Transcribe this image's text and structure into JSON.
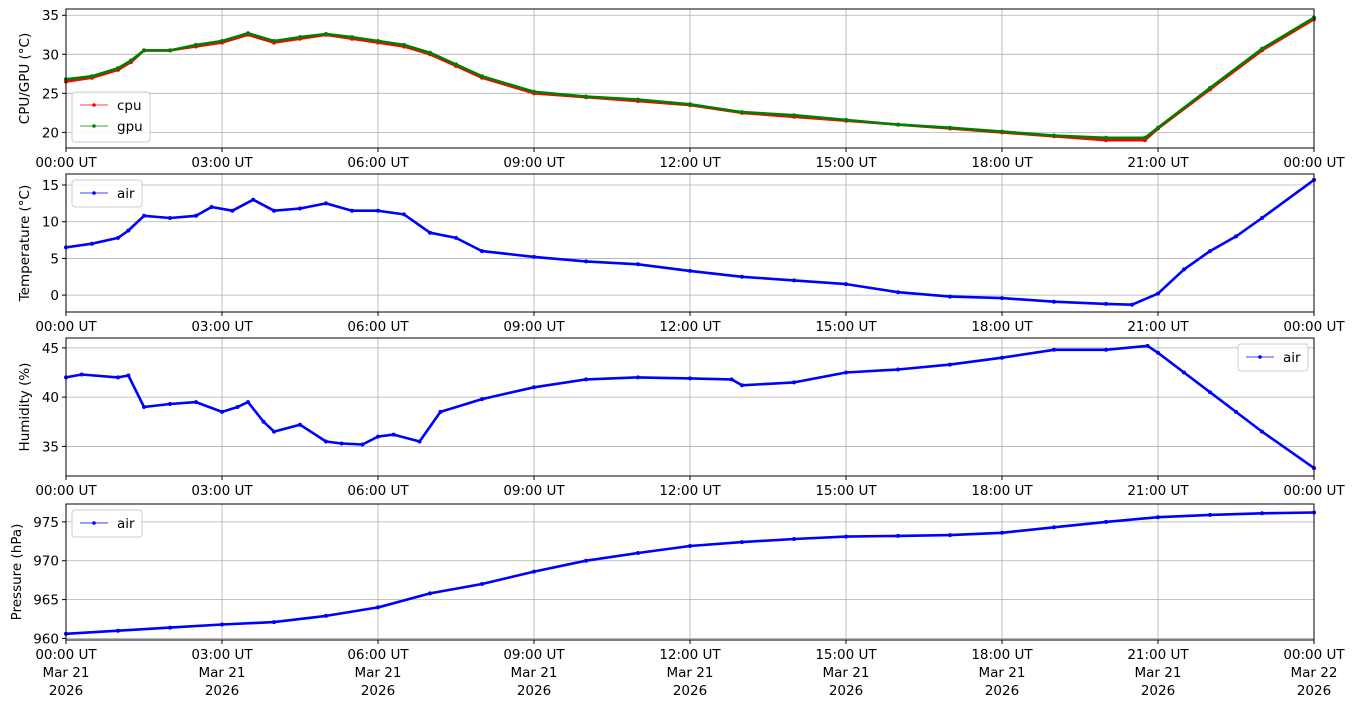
{
  "x_ticks": [
    "00:00 UT",
    "03:00 UT",
    "06:00 UT",
    "09:00 UT",
    "12:00 UT",
    "15:00 UT",
    "18:00 UT",
    "21:00 UT",
    "00:00 UT"
  ],
  "x_date_lines": [
    [
      "Mar 21",
      "2026"
    ],
    [
      "Mar 21",
      "2026"
    ],
    [
      "Mar 21",
      "2026"
    ],
    [
      "Mar 21",
      "2026"
    ],
    [
      "Mar 21",
      "2026"
    ],
    [
      "Mar 21",
      "2026"
    ],
    [
      "Mar 21",
      "2026"
    ],
    [
      "Mar 21",
      "2026"
    ],
    [
      "Mar 22",
      "2026"
    ]
  ],
  "chart_data": [
    {
      "type": "line",
      "ylabel": "CPU/GPU (°C)",
      "ylim": [
        18,
        35.8
      ],
      "yticks": [
        20,
        25,
        30,
        35
      ],
      "xlim": [
        "2026-03-21 00:00",
        "2026-03-22 00:00"
      ],
      "grid": true,
      "legend_loc": "lower-left",
      "x_hours": [
        0,
        0.5,
        1,
        1.25,
        1.5,
        2,
        2.5,
        3,
        3.5,
        4,
        4.5,
        5,
        5.5,
        6,
        6.5,
        7,
        7.5,
        8,
        9,
        10,
        11,
        12,
        13,
        14,
        15,
        16,
        17,
        18,
        19,
        20,
        20.75,
        21,
        22,
        23,
        24
      ],
      "series": [
        {
          "name": "cpu",
          "color": "#ff0000",
          "values": [
            26.5,
            27,
            28,
            29,
            30.5,
            30.5,
            31,
            31.5,
            32.5,
            31.5,
            32,
            32.5,
            32,
            31.5,
            31,
            30,
            28.5,
            27,
            25,
            24.5,
            24,
            23.5,
            22.5,
            22,
            21.5,
            21,
            20.5,
            20,
            19.5,
            19,
            19,
            20.5,
            25.5,
            30.5,
            34.5
          ]
        },
        {
          "name": "gpu",
          "color": "#008000",
          "values": [
            26.8,
            27.2,
            28.2,
            29.2,
            30.5,
            30.5,
            31.2,
            31.7,
            32.7,
            31.7,
            32.2,
            32.6,
            32.2,
            31.7,
            31.2,
            30.2,
            28.7,
            27.2,
            25.2,
            24.6,
            24.2,
            23.6,
            22.6,
            22.2,
            21.6,
            21,
            20.6,
            20.1,
            19.6,
            19.3,
            19.3,
            20.6,
            25.7,
            30.7,
            34.7
          ]
        }
      ]
    },
    {
      "type": "line",
      "ylabel": "Temperature (°C)",
      "ylim": [
        -2.3,
        16.5
      ],
      "yticks": [
        0,
        5,
        10,
        15
      ],
      "xlim": [
        "2026-03-21 00:00",
        "2026-03-22 00:00"
      ],
      "grid": true,
      "legend_loc": "upper-left",
      "x_hours": [
        0,
        0.5,
        1,
        1.2,
        1.5,
        2,
        2.5,
        2.8,
        3.2,
        3.6,
        4,
        4.5,
        5,
        5.5,
        6,
        6.5,
        7,
        7.5,
        8,
        9,
        10,
        11,
        12,
        13,
        14,
        15,
        16,
        17,
        18,
        19,
        20,
        20.5,
        21,
        21.5,
        22,
        22.5,
        23,
        24
      ],
      "series": [
        {
          "name": "air",
          "color": "#0000ff",
          "values": [
            6.5,
            7,
            7.8,
            8.8,
            10.8,
            10.5,
            10.8,
            12,
            11.5,
            13,
            11.5,
            11.8,
            12.5,
            11.5,
            11.5,
            11,
            8.5,
            7.8,
            6,
            5.2,
            4.6,
            4.2,
            3.3,
            2.5,
            2,
            1.5,
            0.4,
            -0.2,
            -0.4,
            -0.9,
            -1.2,
            -1.3,
            0.2,
            3.5,
            6,
            8,
            10.5,
            15.7
          ]
        }
      ]
    },
    {
      "type": "line",
      "ylabel": "Humidity (%)",
      "ylim": [
        32,
        46
      ],
      "yticks": [
        35,
        40,
        45
      ],
      "xlim": [
        "2026-03-21 00:00",
        "2026-03-22 00:00"
      ],
      "grid": true,
      "legend_loc": "upper-right",
      "x_hours": [
        0,
        0.3,
        1,
        1.2,
        1.5,
        2,
        2.5,
        3,
        3.3,
        3.5,
        3.8,
        4,
        4.5,
        5,
        5.3,
        5.7,
        6,
        6.3,
        6.8,
        7.2,
        8,
        9,
        10,
        11,
        12,
        12.8,
        13,
        14,
        15,
        16,
        17,
        18,
        19,
        20,
        20.8,
        21,
        21.5,
        22,
        22.5,
        23,
        24
      ],
      "series": [
        {
          "name": "air",
          "color": "#0000ff",
          "values": [
            42,
            42.3,
            42,
            42.2,
            39,
            39.3,
            39.5,
            38.5,
            39,
            39.5,
            37.5,
            36.5,
            37.2,
            35.5,
            35.3,
            35.2,
            36,
            36.2,
            35.5,
            38.5,
            39.8,
            41,
            41.8,
            42,
            41.9,
            41.8,
            41.2,
            41.5,
            42.5,
            42.8,
            43.3,
            44,
            44.8,
            44.8,
            45.2,
            44.5,
            42.5,
            40.5,
            38.5,
            36.5,
            32.8
          ]
        }
      ]
    },
    {
      "type": "line",
      "ylabel": "Pressure (hPa)",
      "ylim": [
        959.8,
        977.3
      ],
      "yticks": [
        960,
        965,
        970,
        975
      ],
      "xlim": [
        "2026-03-21 00:00",
        "2026-03-22 00:00"
      ],
      "grid": true,
      "legend_loc": "upper-left",
      "x_hours": [
        0,
        1,
        2,
        3,
        4,
        5,
        6,
        7,
        8,
        9,
        10,
        11,
        12,
        13,
        14,
        15,
        16,
        17,
        18,
        19,
        20,
        21,
        22,
        23,
        24
      ],
      "series": [
        {
          "name": "air",
          "color": "#0000ff",
          "values": [
            960.6,
            961,
            961.4,
            961.8,
            962.1,
            962.9,
            964,
            965.8,
            967,
            968.6,
            970,
            971,
            971.9,
            972.4,
            972.8,
            973.1,
            973.2,
            973.3,
            973.6,
            974.3,
            975,
            975.6,
            975.9,
            976.1,
            976.2
          ]
        }
      ]
    }
  ]
}
